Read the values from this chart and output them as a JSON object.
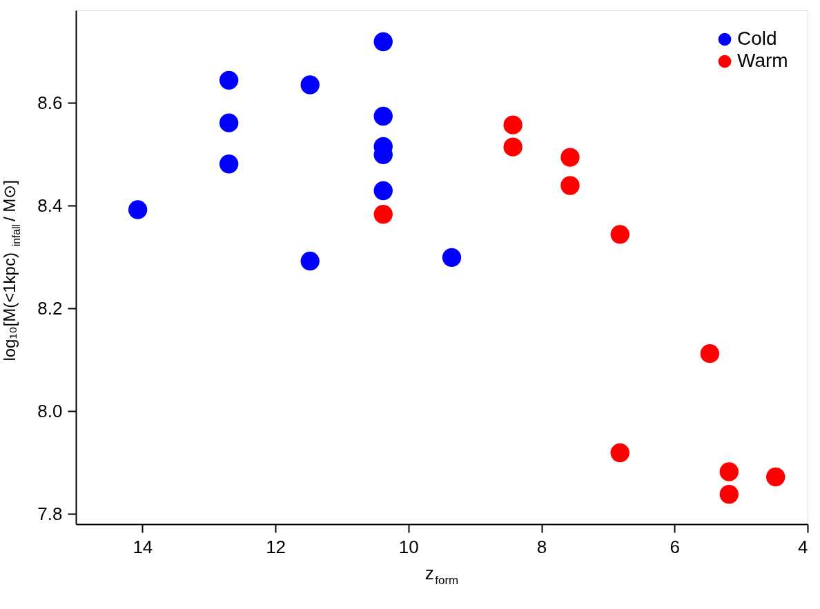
{
  "chart_data": {
    "type": "scatter",
    "xlabel": "z$_{form}$",
    "ylabel": "log₁₀[M(<1kpc)$_{infall}$ / M⊙]",
    "xlim": [
      15,
      4
    ],
    "xticks": [
      14,
      12,
      10,
      8,
      6,
      4
    ],
    "ylim": [
      7.78,
      8.78
    ],
    "yticks": [
      7.8,
      {
        "value": 8,
        "label": "8.0"
      },
      8.2,
      8.4,
      8.6
    ],
    "grid": false,
    "legend": "top right",
    "marker": "circle",
    "series": [
      {
        "name": "Cold",
        "color": "#0000ff",
        "x": [
          14.07,
          12.7,
          12.7,
          12.7,
          11.48,
          11.48,
          10.38,
          10.38,
          10.38,
          10.38,
          10.38,
          9.35
        ],
        "values": [
          8.392,
          8.644,
          8.561,
          8.481,
          8.635,
          8.292,
          8.719,
          8.574,
          8.515,
          8.499,
          8.429,
          8.299
        ]
      },
      {
        "name": "Warm",
        "color": "#ff0000",
        "x": [
          10.38,
          8.43,
          8.43,
          7.57,
          7.57,
          6.82,
          5.47,
          6.82,
          5.18,
          5.18,
          4.48
        ],
        "values": [
          8.383,
          8.557,
          8.514,
          8.494,
          8.439,
          8.344,
          8.112,
          7.919,
          7.882,
          7.838,
          7.872
        ]
      }
    ]
  }
}
